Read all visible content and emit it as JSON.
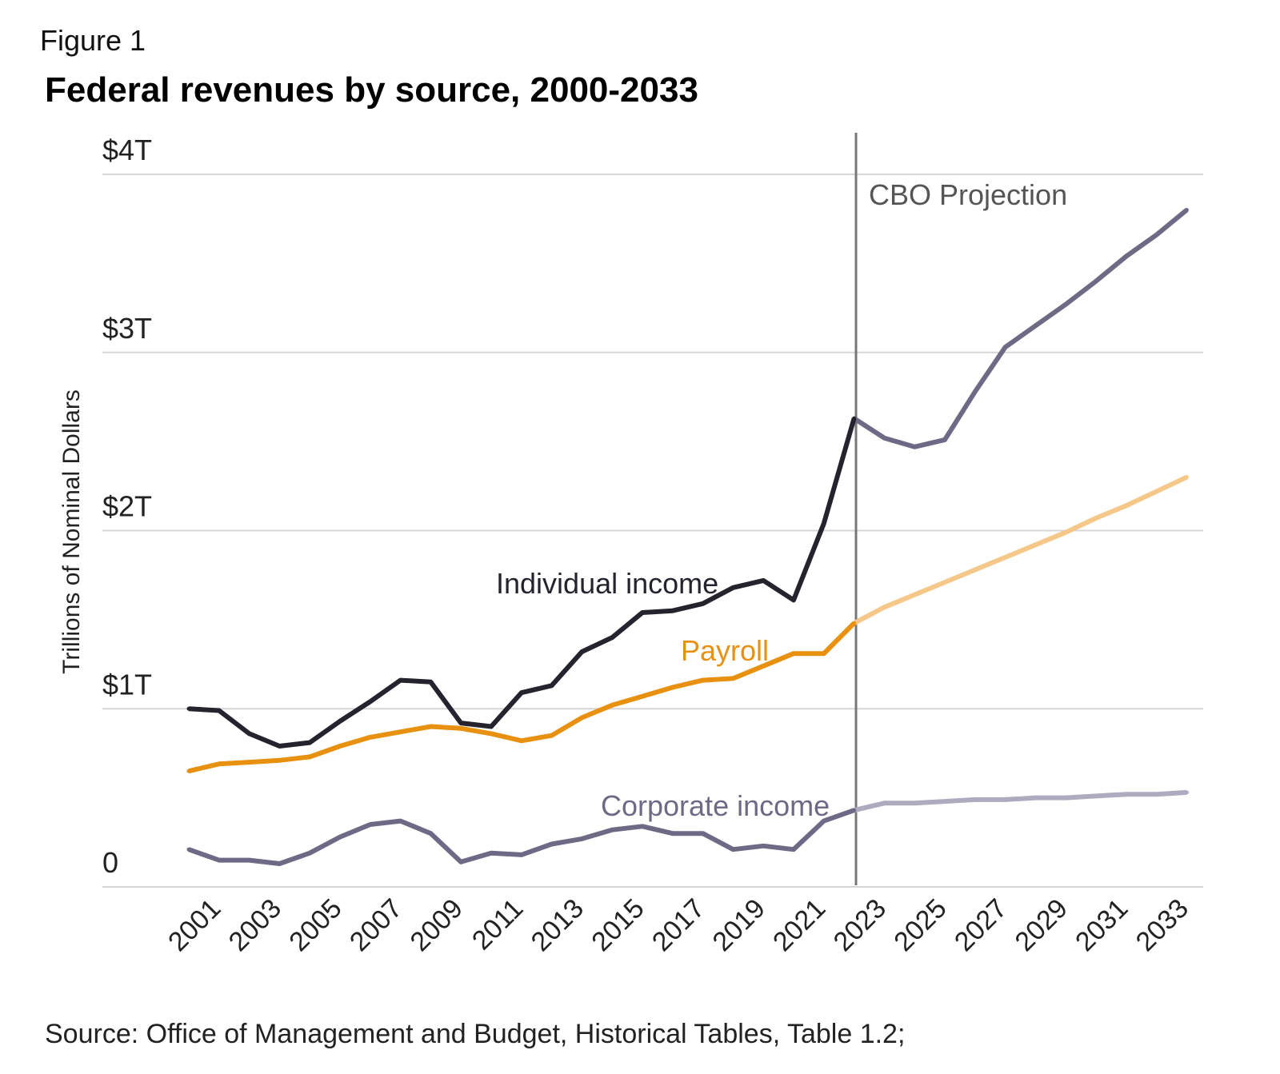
{
  "figure_label": "Figure 1",
  "source": "Source: Office of Management and Budget, Historical Tables, Table 1.2;",
  "chart_data": {
    "type": "line",
    "title": "Federal revenues by source, 2000-2033",
    "xlabel": "",
    "ylabel": "Trillions of Nominal Dollars",
    "ylim": [
      0,
      4
    ],
    "xlim": [
      2000,
      2033
    ],
    "grid": true,
    "y_ticks": [
      {
        "value": 0,
        "label": "0"
      },
      {
        "value": 1,
        "label": "$1T"
      },
      {
        "value": 2,
        "label": "$2T"
      },
      {
        "value": 3,
        "label": "$3T"
      },
      {
        "value": 4,
        "label": "$4T"
      }
    ],
    "x_ticks": [
      "2001",
      "2003",
      "2005",
      "2007",
      "2009",
      "2011",
      "2013",
      "2015",
      "2017",
      "2019",
      "2021",
      "2023",
      "2025",
      "2027",
      "2029",
      "2031",
      "2033"
    ],
    "projection_start": 2022,
    "projection_label": "CBO Projection",
    "x": [
      2000,
      2001,
      2002,
      2003,
      2004,
      2005,
      2006,
      2007,
      2008,
      2009,
      2010,
      2011,
      2012,
      2013,
      2014,
      2015,
      2016,
      2017,
      2018,
      2019,
      2020,
      2021,
      2022,
      2023,
      2024,
      2025,
      2026,
      2027,
      2028,
      2029,
      2030,
      2031,
      2032,
      2033
    ],
    "series": [
      {
        "name": "Individual income",
        "color": "#26232f",
        "projection_color": "#6e6a85",
        "values": [
          1.0,
          0.99,
          0.86,
          0.79,
          0.81,
          0.93,
          1.04,
          1.16,
          1.15,
          0.92,
          0.9,
          1.09,
          1.13,
          1.32,
          1.4,
          1.54,
          1.55,
          1.59,
          1.68,
          1.72,
          1.61,
          2.04,
          2.63,
          2.52,
          2.47,
          2.51,
          2.78,
          3.03,
          3.15,
          3.27,
          3.4,
          3.54,
          3.66,
          3.8
        ]
      },
      {
        "name": "Payroll",
        "color": "#e8900f",
        "projection_color": "#f5c88a",
        "values": [
          0.65,
          0.69,
          0.7,
          0.71,
          0.73,
          0.79,
          0.84,
          0.87,
          0.9,
          0.89,
          0.86,
          0.82,
          0.85,
          0.95,
          1.02,
          1.07,
          1.12,
          1.16,
          1.17,
          1.24,
          1.31,
          1.31,
          1.48,
          1.57,
          1.64,
          1.71,
          1.78,
          1.85,
          1.92,
          1.99,
          2.07,
          2.14,
          2.22,
          2.3
        ]
      },
      {
        "name": "Corporate income",
        "color": "#6e6a85",
        "projection_color": "#aeaac0",
        "values": [
          0.21,
          0.15,
          0.15,
          0.13,
          0.19,
          0.28,
          0.35,
          0.37,
          0.3,
          0.14,
          0.19,
          0.18,
          0.24,
          0.27,
          0.32,
          0.34,
          0.3,
          0.3,
          0.21,
          0.23,
          0.21,
          0.37,
          0.43,
          0.47,
          0.47,
          0.48,
          0.49,
          0.49,
          0.5,
          0.5,
          0.51,
          0.52,
          0.52,
          0.53
        ]
      }
    ]
  }
}
